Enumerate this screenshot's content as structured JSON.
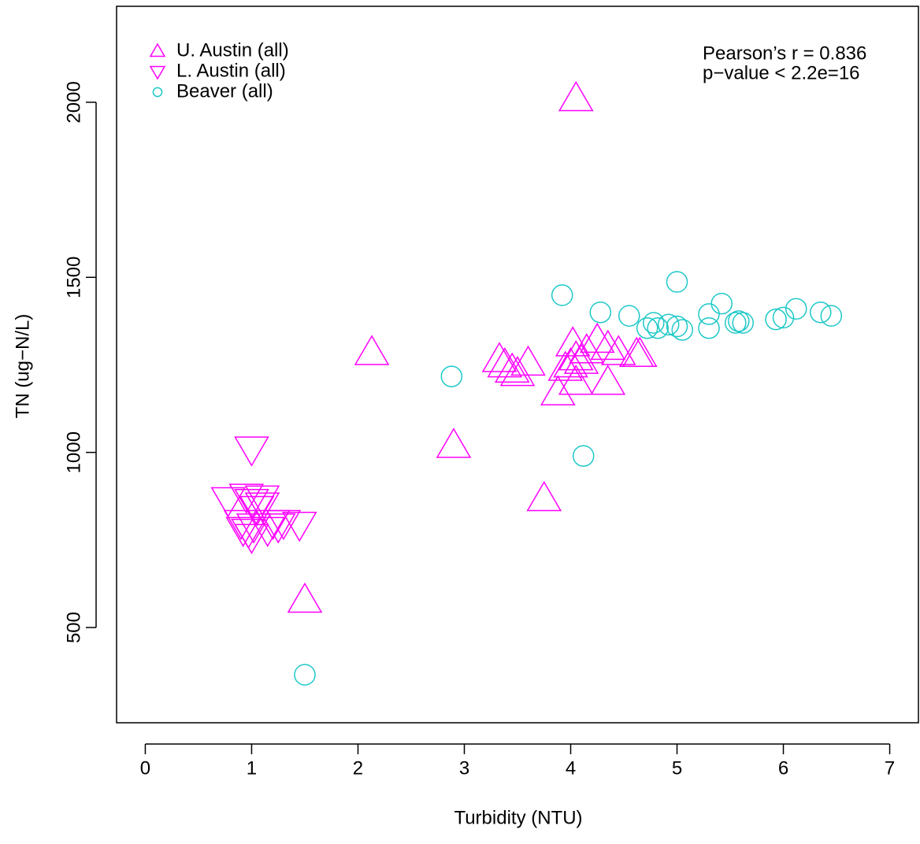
{
  "chart_data": {
    "type": "scatter",
    "xlabel": "Turbidity (NTU)",
    "ylabel": "TN (ug−N/L)",
    "xlim": [
      -0.27,
      7.27
    ],
    "ylim": [
      228,
      2274
    ],
    "xticks": [
      0,
      1,
      2,
      3,
      4,
      5,
      6,
      7
    ],
    "yticks": [
      500,
      1000,
      1500,
      2000
    ],
    "legend_loc": "topleft",
    "annotations": [
      "Pearson’s r = 0.836",
      "p−value < 2.2e=16"
    ],
    "series": [
      {
        "name": "U. Austin (all)",
        "color": "#ff00ff",
        "marker": "triangle-up",
        "x": [
          4.05,
          2.13,
          2.9,
          3.75,
          1.5,
          3.33,
          3.38,
          3.45,
          3.5,
          3.6,
          3.88,
          3.95,
          4.0,
          4.02,
          4.05,
          4.05,
          4.1,
          4.15,
          4.25,
          4.35,
          4.35,
          4.45,
          4.62,
          4.65
        ],
        "values": [
          2010,
          1285,
          1020,
          868,
          578,
          1265,
          1250,
          1235,
          1225,
          1255,
          1170,
          1240,
          1250,
          1310,
          1200,
          1270,
          1260,
          1290,
          1320,
          1200,
          1300,
          1285,
          1280,
          1280
        ]
      },
      {
        "name": "L. Austin (all)",
        "color": "#ff00ff",
        "marker": "triangle-down",
        "x": [
          1.0,
          0.78,
          0.9,
          0.95,
          0.97,
          1.0,
          1.02,
          1.05,
          1.1,
          1.15,
          1.2,
          1.25,
          1.3,
          1.45,
          1.0,
          1.1,
          0.92
        ],
        "values": [
          1010,
          865,
          800,
          875,
          775,
          860,
          790,
          840,
          870,
          780,
          800,
          790,
          800,
          795,
          760,
          850,
          780
        ]
      },
      {
        "name": "Beaver (all)",
        "color": "#1fc8c8",
        "marker": "circle",
        "x": [
          1.5,
          2.88,
          3.92,
          4.12,
          4.28,
          4.55,
          4.72,
          4.78,
          4.82,
          4.92,
          5.0,
          5.0,
          5.05,
          5.3,
          5.3,
          5.42,
          5.55,
          5.58,
          5.62,
          5.93,
          6.0,
          6.12,
          6.35,
          6.45
        ],
        "values": [
          365,
          1217,
          1449,
          990,
          1400,
          1390,
          1355,
          1370,
          1355,
          1365,
          1487,
          1360,
          1350,
          1395,
          1355,
          1425,
          1370,
          1375,
          1370,
          1380,
          1385,
          1410,
          1400,
          1390
        ]
      }
    ]
  }
}
